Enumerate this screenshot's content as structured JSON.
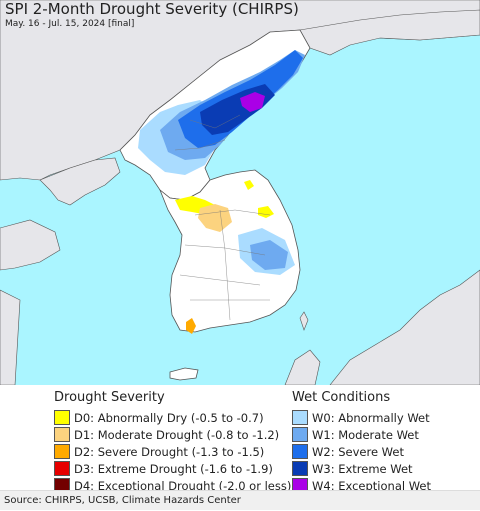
{
  "header": {
    "title": "SPI 2-Month Drought Severity (CHIRPS)",
    "subtitle": "May. 16 - Jul. 15, 2024 [final]"
  },
  "colors": {
    "water": "#aaf5ff",
    "land_background": "#e6e6ea",
    "land_korea": "#ffffff",
    "border": "#555555"
  },
  "legend": {
    "drought": {
      "title": "Drought Severity",
      "items": [
        {
          "label": "D0: Abnormally Dry (-0.5 to -0.7)",
          "color": "#ffff00"
        },
        {
          "label": "D1: Moderate Drought (-0.8 to -1.2)",
          "color": "#fcd37f"
        },
        {
          "label": "D2: Severe Drought (-1.3 to -1.5)",
          "color": "#ffaa00"
        },
        {
          "label": "D3: Extreme Drought (-1.6 to -1.9)",
          "color": "#e60000"
        },
        {
          "label": "D4: Exceptional Drought (-2.0 or less)",
          "color": "#730000"
        }
      ]
    },
    "wet": {
      "title": "Wet Conditions",
      "items": [
        {
          "label": "W0: Abnormally Wet",
          "color": "#aadcff"
        },
        {
          "label": "W1: Moderate Wet",
          "color": "#6eaaf0"
        },
        {
          "label": "W2: Severe Wet",
          "color": "#1e6eeb"
        },
        {
          "label": "W3: Extreme Wet",
          "color": "#0a3cb4"
        },
        {
          "label": "W4: Exceptional Wet",
          "color": "#aa00e6"
        }
      ]
    }
  },
  "footer": {
    "source": "Source: CHIRPS, UCSB, Climate Hazards Center"
  }
}
